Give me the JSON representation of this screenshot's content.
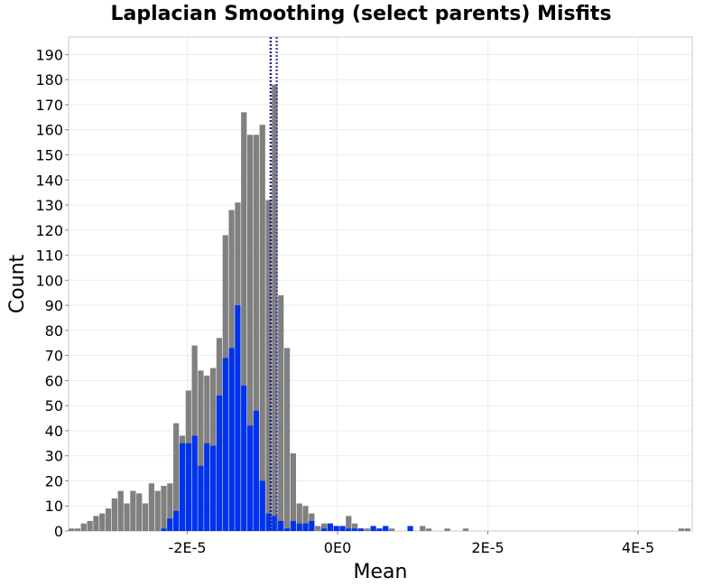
{
  "chart_data": {
    "type": "histogram",
    "title": "Laplacian Smoothing (select parents) Misfits",
    "xlabel": "Mean",
    "ylabel": "Count",
    "xlim": [
      -3.58e-05,
      4.72e-05
    ],
    "ylim": [
      0,
      197
    ],
    "bin_width": 8.2e-07,
    "bin_start": -3.58e-05,
    "x_ticks": [
      -2e-05,
      0,
      2e-05,
      4e-05
    ],
    "x_tick_labels": [
      "-2E-5",
      "0E0",
      "2E-5",
      "4E-5"
    ],
    "y_ticks": [
      0,
      10,
      20,
      30,
      40,
      50,
      60,
      70,
      80,
      90,
      100,
      110,
      120,
      130,
      140,
      150,
      160,
      170,
      180,
      190
    ],
    "grid": true,
    "colors": {
      "all": "#808080",
      "selected": "#0033ee",
      "mean_line_selected": "#1a237e",
      "mean_line_all": "#3f51b5"
    },
    "series": [
      {
        "values": [
          1,
          1,
          3,
          4,
          6,
          7,
          9,
          13,
          16,
          11,
          16,
          15,
          11,
          19,
          16,
          18,
          19,
          43,
          38,
          56,
          74,
          64,
          62,
          65,
          77,
          118,
          128,
          131,
          167,
          158,
          158,
          162,
          132,
          178,
          94,
          73,
          31,
          11,
          10,
          7,
          2,
          3,
          3,
          2,
          2,
          6,
          3,
          1,
          1,
          1,
          1,
          1,
          1,
          0,
          0,
          1,
          0,
          2,
          1,
          0,
          0,
          1,
          0,
          0,
          1,
          0,
          0,
          0,
          0,
          0,
          0,
          0,
          0,
          0,
          0,
          0,
          0,
          0,
          0,
          0,
          0,
          0,
          0,
          0,
          0,
          0,
          0,
          0,
          0,
          0,
          0,
          0,
          0,
          0,
          0,
          0,
          0,
          0,
          0,
          1,
          1
        ]
      },
      {
        "values": [
          0,
          0,
          0,
          0,
          0,
          0,
          0,
          0,
          0,
          0,
          0,
          0,
          0,
          0,
          0,
          1,
          5,
          8,
          35,
          35,
          38,
          26,
          35,
          34,
          54,
          69,
          73,
          90,
          58,
          42,
          48,
          20,
          7,
          6,
          4,
          1,
          4,
          3,
          3,
          4,
          0,
          1,
          3,
          2,
          2,
          1,
          1,
          1,
          0,
          2,
          1,
          2,
          0,
          0,
          0,
          2,
          0
        ]
      }
    ],
    "mean_lines": [
      -8.9e-06,
      -8.1e-06
    ]
  }
}
